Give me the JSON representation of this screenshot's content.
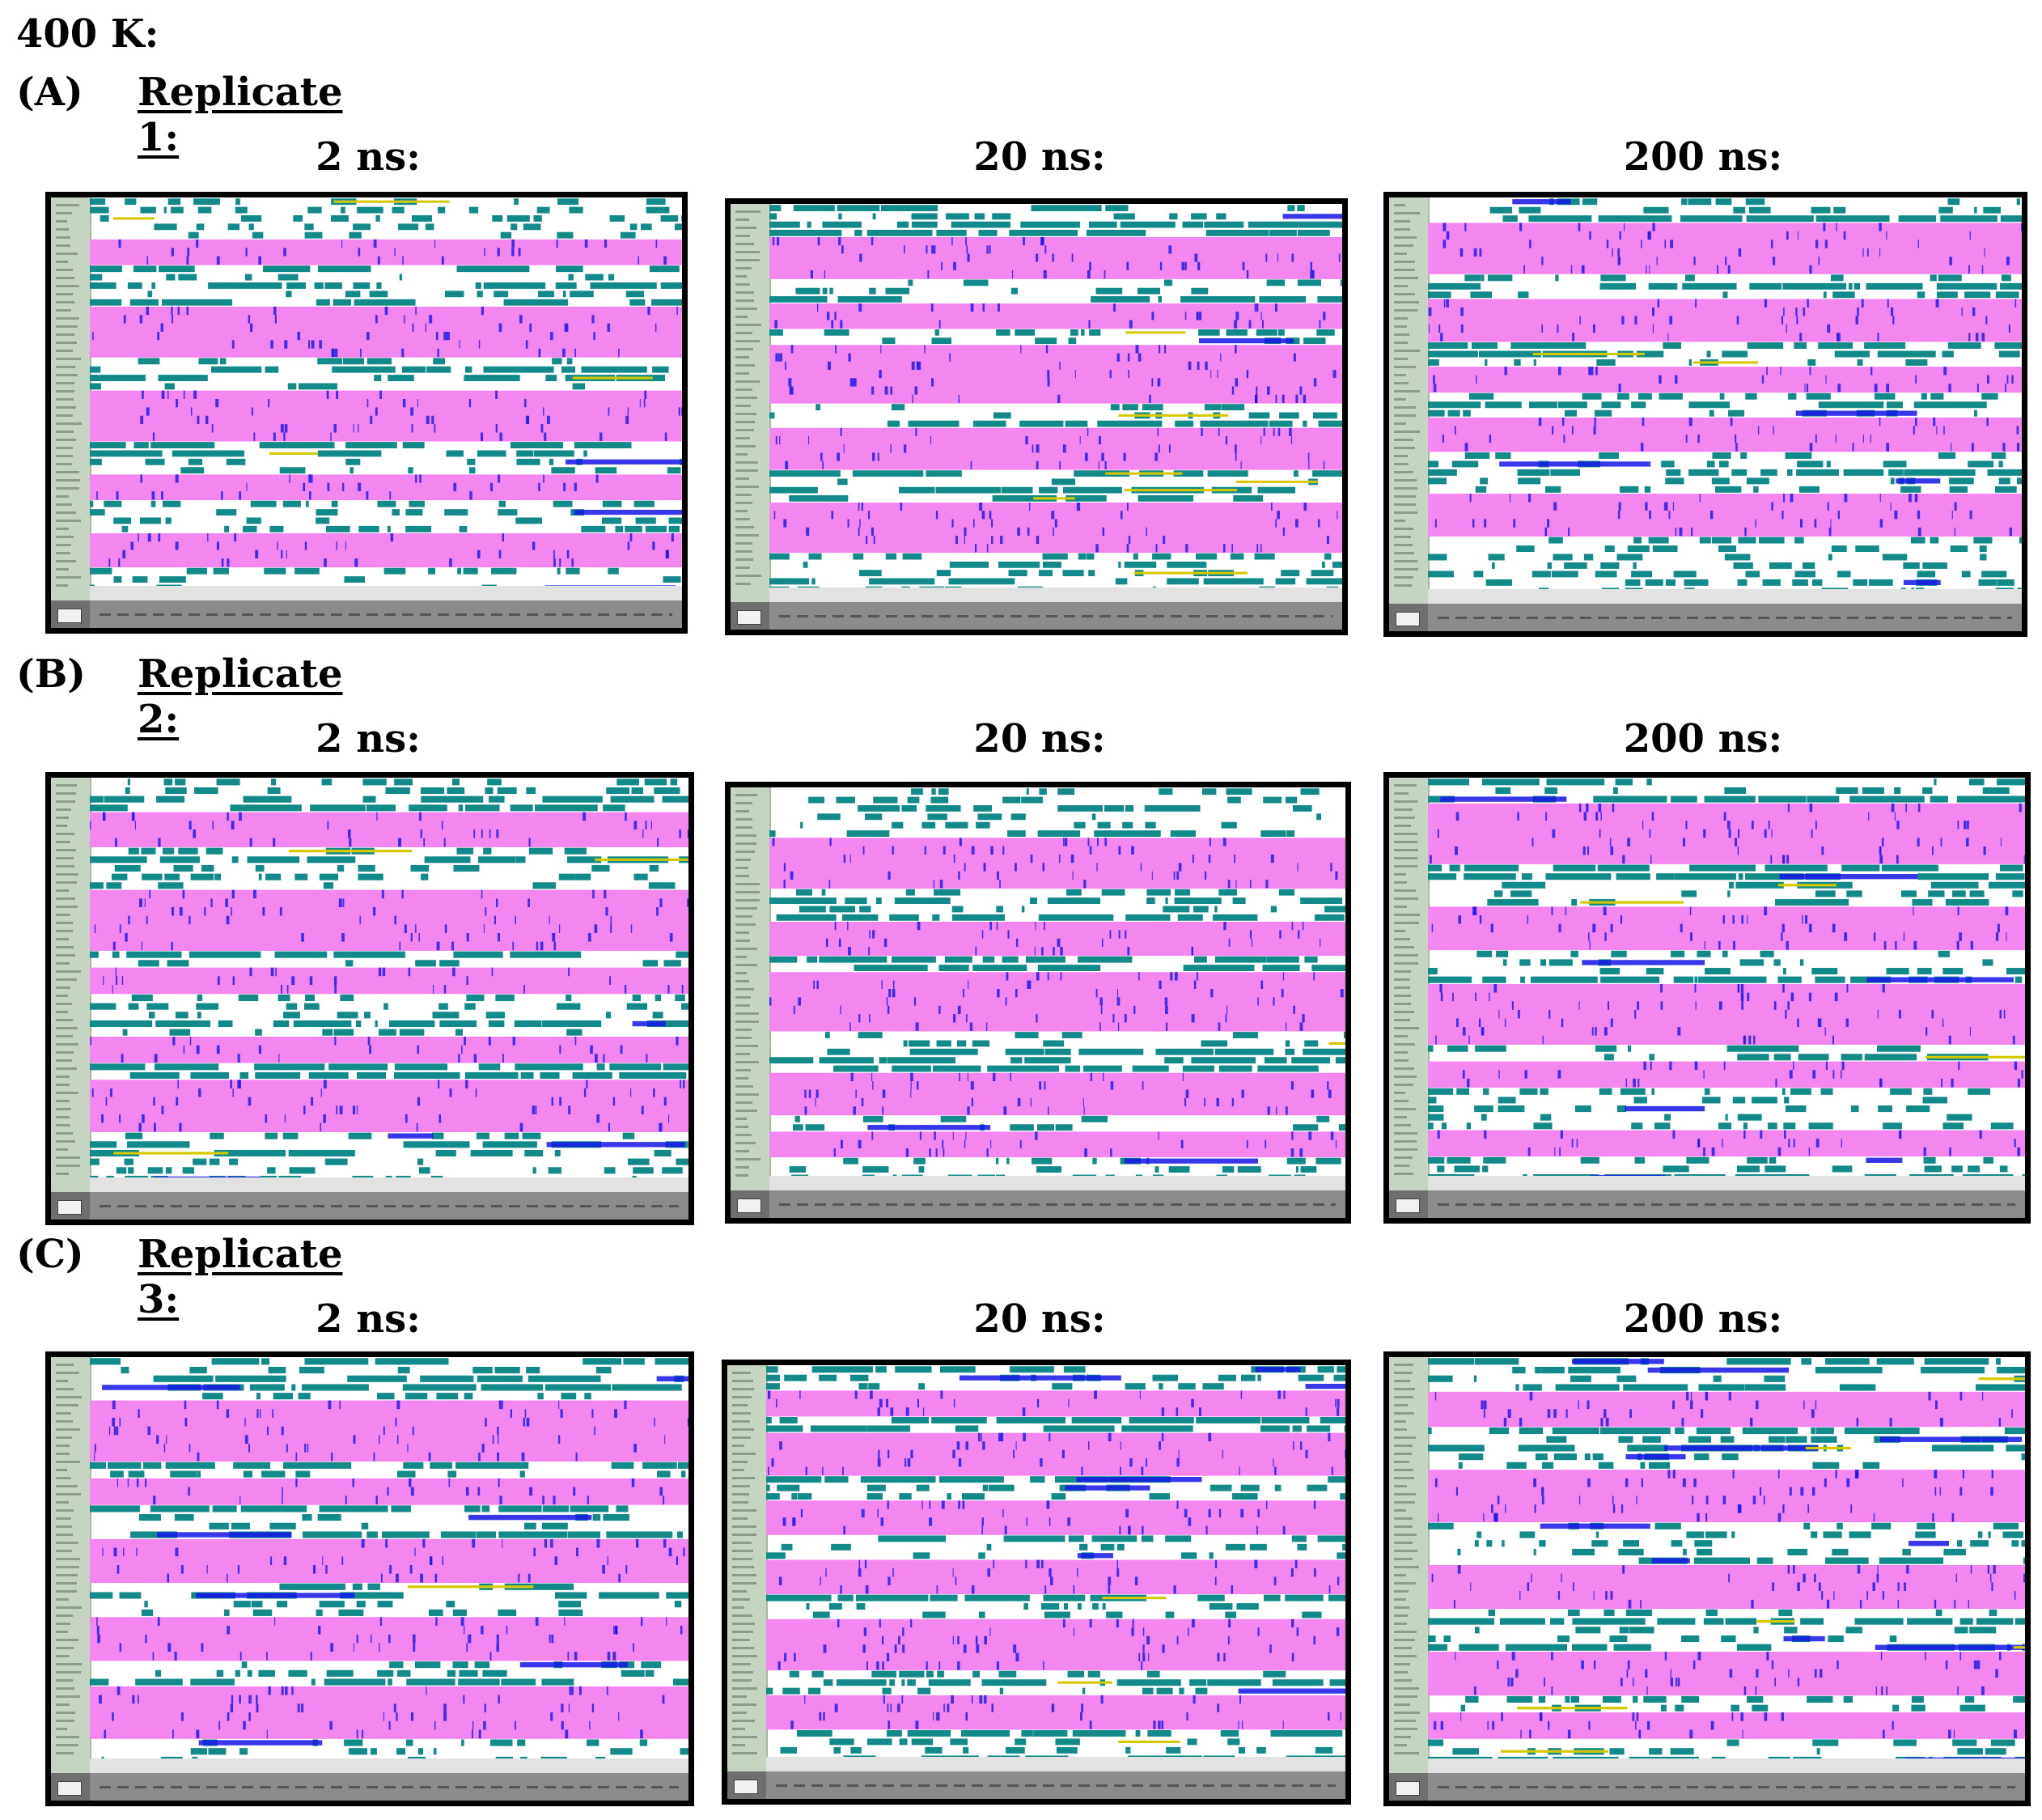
{
  "temperature_label": "400 K:",
  "colors": {
    "helix_pink": "#f486ef",
    "turn_teal": "#138a8a",
    "three10_blue": "#1515e6",
    "bridge_yellow": "#d6c800",
    "label_strip": "#c6d5c2"
  },
  "replicates": [
    {
      "letter": "(A)",
      "title": "Replicate 1:",
      "timescales": [
        "2 ns:",
        "20 ns:",
        "200 ns:"
      ]
    },
    {
      "letter": "(B)",
      "title": "Replicate 2:",
      "timescales": [
        "2 ns:",
        "20 ns:",
        "200 ns:"
      ]
    },
    {
      "letter": "(C)",
      "title": "Replicate 3:",
      "timescales": [
        "2 ns:",
        "20 ns:",
        "200 ns:"
      ]
    }
  ]
}
